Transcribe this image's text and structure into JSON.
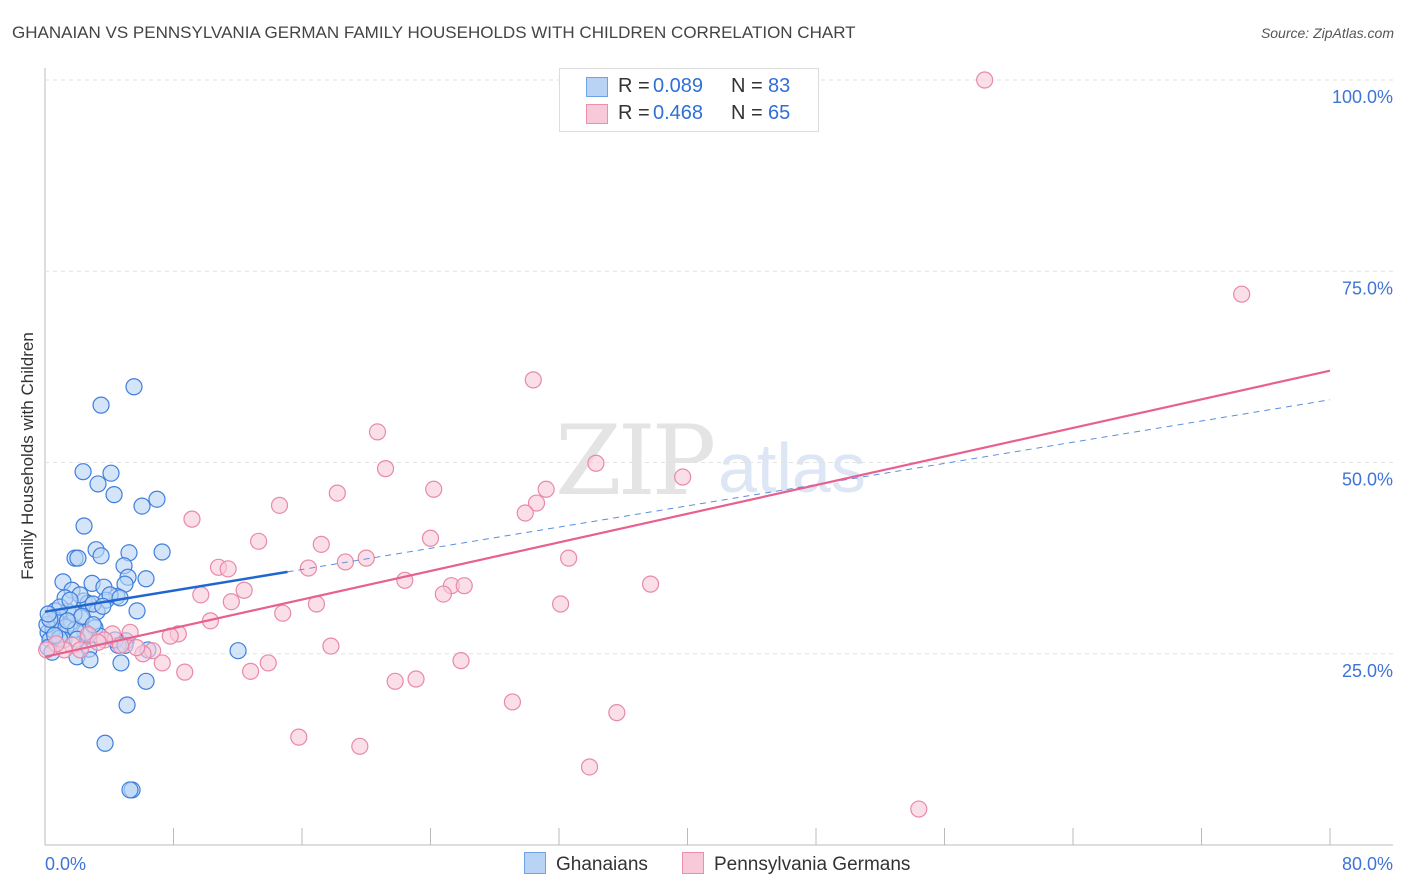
{
  "chart_data": {
    "type": "scatter",
    "title": "GHANAIAN VS PENNSYLVANIA GERMAN FAMILY HOUSEHOLDS WITH CHILDREN CORRELATION CHART",
    "source": "Source: ZipAtlas.com",
    "ylabel": "Family Households with Children",
    "xlim": [
      0,
      80
    ],
    "ylim": [
      0,
      100
    ],
    "x_tick_labels": [
      "0.0%",
      "80.0%"
    ],
    "y_tick_labels": [
      "100.0%",
      "75.0%",
      "50.0%",
      "25.0%"
    ],
    "y_ticks": [
      100,
      75,
      50,
      25
    ],
    "grid": true,
    "legend": [
      {
        "name": "Ghanaians",
        "r_label": "R =",
        "r": "0.089",
        "n_label": "N =",
        "n": "83",
        "color": "#6fa3e8",
        "fill": "#b9d3f5"
      },
      {
        "name": "Pennsylvania Germans",
        "r_label": "R =",
        "r": "0.468",
        "n_label": "N =",
        "n": "65",
        "color": "#ec8fae",
        "fill": "#f8c9d8"
      }
    ],
    "series": [
      {
        "name": "Ghanaians",
        "trend": {
          "x": [
            0,
            15.1
          ],
          "y": [
            30.5,
            35.7
          ],
          "dashed_to": [
            80,
            58.2
          ]
        },
        "points": [
          [
            5.54,
            59.9
          ],
          [
            3.49,
            57.5
          ],
          [
            2.37,
            48.8
          ],
          [
            4.11,
            48.6
          ],
          [
            3.3,
            47.2
          ],
          [
            4.3,
            45.8
          ],
          [
            6.97,
            45.2
          ],
          [
            6.04,
            44.3
          ],
          [
            2.43,
            41.7
          ],
          [
            3.18,
            38.6
          ],
          [
            1.87,
            37.5
          ],
          [
            2.05,
            37.5
          ],
          [
            3.49,
            37.8
          ],
          [
            5.23,
            38.2
          ],
          [
            7.29,
            38.3
          ],
          [
            4.92,
            36.5
          ],
          [
            5.17,
            35.0
          ],
          [
            6.29,
            34.8
          ],
          [
            1.12,
            34.4
          ],
          [
            2.93,
            34.2
          ],
          [
            4.98,
            34.1
          ],
          [
            3.67,
            33.7
          ],
          [
            1.68,
            33.3
          ],
          [
            4.48,
            32.5
          ],
          [
            1.25,
            32.3
          ],
          [
            2.43,
            31.9
          ],
          [
            3.8,
            32.0
          ],
          [
            2.68,
            31.6
          ],
          [
            5.73,
            30.6
          ],
          [
            0.62,
            30.6
          ],
          [
            1.43,
            30.5
          ],
          [
            0.93,
            29.8
          ],
          [
            2.24,
            29.7
          ],
          [
            1.56,
            29.0
          ],
          [
            0.44,
            28.8
          ],
          [
            3.11,
            28.4
          ],
          [
            0.81,
            28.1
          ],
          [
            0.19,
            27.8
          ],
          [
            1.06,
            27.6
          ],
          [
            0.31,
            26.8
          ],
          [
            2.62,
            27.3
          ],
          [
            3.42,
            27.3
          ],
          [
            5.04,
            26.7
          ],
          [
            4.55,
            26.1
          ],
          [
            0.19,
            25.8
          ],
          [
            2.74,
            25.6
          ],
          [
            6.41,
            25.5
          ],
          [
            1.99,
            24.6
          ],
          [
            2.8,
            24.2
          ],
          [
            4.73,
            23.8
          ],
          [
            12.02,
            25.4
          ],
          [
            6.29,
            21.4
          ],
          [
            5.11,
            18.3
          ],
          [
            3.74,
            13.3
          ],
          [
            5.42,
            7.2
          ],
          [
            5.29,
            7.2
          ],
          [
            0.5,
            28.1
          ],
          [
            0.68,
            29.4
          ],
          [
            1.31,
            28.5
          ],
          [
            0.12,
            28.8
          ],
          [
            1.81,
            30.2
          ],
          [
            2.18,
            32.7
          ],
          [
            3.24,
            30.5
          ],
          [
            4.05,
            32.7
          ],
          [
            4.67,
            32.3
          ],
          [
            0.44,
            25.2
          ],
          [
            0.93,
            31.1
          ],
          [
            1.56,
            32.0
          ],
          [
            2.99,
            31.5
          ],
          [
            2.49,
            27.8
          ],
          [
            1.18,
            26.8
          ],
          [
            4.36,
            26.8
          ],
          [
            4.98,
            26.1
          ],
          [
            0.3,
            29.5
          ],
          [
            0.9,
            27.0
          ],
          [
            1.9,
            28.2
          ],
          [
            2.3,
            29.9
          ],
          [
            3.6,
            31.2
          ],
          [
            0.6,
            27.4
          ],
          [
            1.4,
            29.3
          ],
          [
            2.0,
            26.9
          ],
          [
            0.2,
            30.2
          ],
          [
            3.0,
            28.8
          ]
        ]
      },
      {
        "name": "Pennsylvania Germans",
        "trend": {
          "x": [
            0,
            80
          ],
          "y": [
            24.6,
            62.0
          ]
        },
        "points": [
          [
            58.5,
            100
          ],
          [
            74.5,
            72.0
          ],
          [
            30.4,
            60.8
          ],
          [
            20.7,
            54.0
          ],
          [
            34.3,
            49.9
          ],
          [
            21.2,
            49.2
          ],
          [
            39.7,
            48.1
          ],
          [
            24.2,
            46.5
          ],
          [
            18.2,
            46.0
          ],
          [
            31.2,
            46.5
          ],
          [
            30.6,
            44.7
          ],
          [
            14.6,
            44.4
          ],
          [
            29.9,
            43.4
          ],
          [
            9.15,
            42.6
          ],
          [
            24.0,
            40.1
          ],
          [
            13.3,
            39.7
          ],
          [
            17.2,
            39.3
          ],
          [
            20.0,
            37.5
          ],
          [
            18.7,
            37.0
          ],
          [
            32.6,
            37.5
          ],
          [
            10.8,
            36.3
          ],
          [
            11.4,
            36.1
          ],
          [
            16.4,
            36.2
          ],
          [
            22.4,
            34.6
          ],
          [
            37.7,
            34.1
          ],
          [
            25.3,
            33.9
          ],
          [
            26.1,
            33.9
          ],
          [
            12.4,
            33.3
          ],
          [
            9.7,
            32.7
          ],
          [
            24.8,
            32.8
          ],
          [
            11.6,
            31.8
          ],
          [
            32.1,
            31.5
          ],
          [
            16.9,
            31.5
          ],
          [
            14.8,
            30.3
          ],
          [
            10.3,
            29.3
          ],
          [
            8.3,
            27.6
          ],
          [
            7.8,
            27.3
          ],
          [
            5.3,
            27.8
          ],
          [
            4.2,
            27.6
          ],
          [
            2.7,
            27.5
          ],
          [
            3.7,
            26.8
          ],
          [
            1.7,
            26.1
          ],
          [
            1.2,
            25.5
          ],
          [
            0.7,
            26.3
          ],
          [
            0.1,
            25.5
          ],
          [
            6.7,
            25.4
          ],
          [
            17.8,
            26.0
          ],
          [
            6.1,
            25.0
          ],
          [
            7.3,
            23.8
          ],
          [
            13.9,
            23.8
          ],
          [
            25.9,
            24.1
          ],
          [
            8.7,
            22.6
          ],
          [
            12.8,
            22.7
          ],
          [
            21.8,
            21.4
          ],
          [
            23.1,
            21.7
          ],
          [
            29.1,
            18.7
          ],
          [
            35.6,
            17.3
          ],
          [
            15.8,
            14.1
          ],
          [
            19.6,
            12.9
          ],
          [
            33.9,
            10.2
          ],
          [
            54.4,
            4.7
          ],
          [
            3.3,
            26.5
          ],
          [
            4.7,
            26.1
          ],
          [
            5.7,
            25.8
          ],
          [
            2.2,
            25.5
          ]
        ]
      }
    ],
    "watermark": "ZIPatlas"
  }
}
